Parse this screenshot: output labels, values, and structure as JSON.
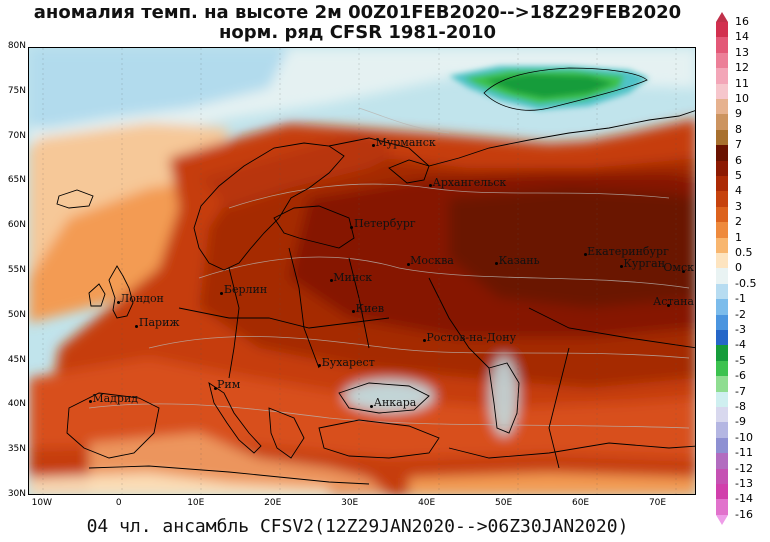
{
  "title_line1": "аномалия темп. на высоте 2м 00Z01FEB2020-->18Z29FEB2020",
  "title_line2": "норм. ряд CFSR 1981-2010",
  "footer": "04 чл. ансамбль CFSV2(12Z29JAN2020-->06Z30JAN2020)",
  "lat_ticks": [
    "80N",
    "75N",
    "70N",
    "65N",
    "60N",
    "55N",
    "50N",
    "45N",
    "40N",
    "35N",
    "30N"
  ],
  "lon_ticks": [
    "10W",
    "0",
    "10E",
    "20E",
    "30E",
    "40E",
    "50E",
    "60E",
    "70E"
  ],
  "cities": [
    {
      "name": "Мурманск",
      "lon": 33.1,
      "lat": 69.0
    },
    {
      "name": "Архангельск",
      "lon": 40.5,
      "lat": 64.5
    },
    {
      "name": "Петербург",
      "lon": 30.3,
      "lat": 59.9
    },
    {
      "name": "Екатеринбург",
      "lon": 60.6,
      "lat": 56.8
    },
    {
      "name": "Москва",
      "lon": 37.6,
      "lat": 55.75
    },
    {
      "name": "Казань",
      "lon": 49.1,
      "lat": 55.8
    },
    {
      "name": "Курган",
      "lon": 65.3,
      "lat": 55.45
    },
    {
      "name": "Минск",
      "lon": 27.6,
      "lat": 53.9
    },
    {
      "name": "Омск",
      "lon": 73.4,
      "lat": 54.99
    },
    {
      "name": "Лондон",
      "lon": -0.1,
      "lat": 51.5
    },
    {
      "name": "Берлин",
      "lon": 13.4,
      "lat": 52.5
    },
    {
      "name": "Киев",
      "lon": 30.5,
      "lat": 50.45
    },
    {
      "name": "Астана",
      "lon": 71.4,
      "lat": 51.2
    },
    {
      "name": "Париж",
      "lon": 2.35,
      "lat": 48.85
    },
    {
      "name": "Ростов-на-Дону",
      "lon": 39.7,
      "lat": 47.2
    },
    {
      "name": "Бухарест",
      "lon": 26.1,
      "lat": 44.4
    },
    {
      "name": "Рим",
      "lon": 12.5,
      "lat": 41.9
    },
    {
      "name": "Мадрид",
      "lon": -3.7,
      "lat": 40.4
    },
    {
      "name": "Анкара",
      "lon": 32.85,
      "lat": 39.9
    }
  ],
  "colorbar": {
    "labels": [
      "16",
      "14",
      "13",
      "12",
      "11",
      "10",
      "9",
      "8",
      "7",
      "6",
      "5",
      "4",
      "3",
      "2",
      "1",
      "0.5",
      "0",
      "-0.5",
      "-1",
      "-2",
      "-3",
      "-4",
      "-5",
      "-6",
      "-7",
      "-8",
      "-9",
      "-10",
      "-11",
      "-12",
      "-13",
      "-14",
      "-16"
    ],
    "colors": [
      "#d2304f",
      "#e35877",
      "#ec7f98",
      "#f3a6b8",
      "#f6c6cc",
      "#e6b28f",
      "#cc9460",
      "#a8702e",
      "#6a1200",
      "#8c1a02",
      "#ac2a05",
      "#c6420d",
      "#dc621d",
      "#ee8a3d",
      "#f8b66f",
      "#fde4c0",
      "#e9f3f3",
      "#b7dcf1",
      "#7cbceb",
      "#4b95df",
      "#2667c8",
      "#169c3b",
      "#3cc24f",
      "#8fdd91",
      "#cfeff0",
      "#d8d8ee",
      "#b4b6e2",
      "#8e90d2",
      "#b26cc0",
      "#c551b3",
      "#d13fac",
      "#e172cc"
    ],
    "top_tip_color": "#c0304a",
    "bottom_tip_color": "#ee9ce8"
  },
  "map_colors": {
    "ocean": "#c1e4ec",
    "pale": "#e9f3f3",
    "light_blue": "#8ccbe9",
    "green": "#2fb041",
    "teal": "#4fc3c7",
    "tan": "#f6c898",
    "orange": "#f39b52",
    "red_orange": "#e0581a",
    "red": "#c63d0f",
    "deep_red": "#a52a06",
    "dark_red": "#861900",
    "brown": "#6b1200",
    "border": "#000000"
  }
}
